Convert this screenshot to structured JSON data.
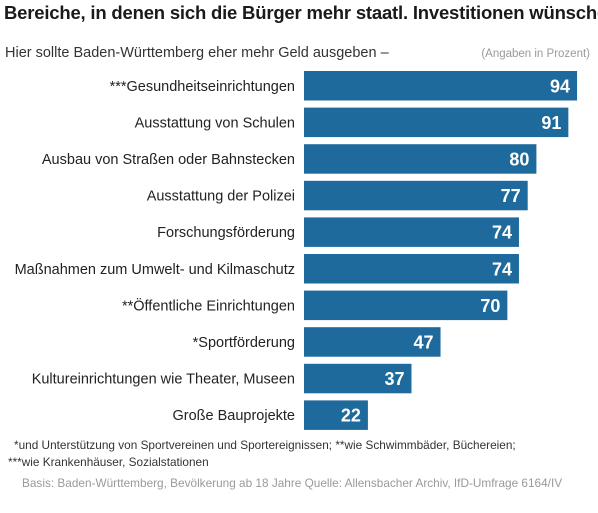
{
  "title": "Bereiche, in denen sich die Bürger mehr staatl. Investitionen wünschen",
  "subtitle": "Hier sollte Baden-Württemberg eher mehr Geld ausgeben –",
  "unit_note": "(Angaben in Prozent)",
  "footnotes": {
    "line1": "*und Unterstützung von Sportvereinen und Sportereignissen; **wie Schwimmbäder, Büchereien;",
    "line2": "***wie Krankenhäuser, Sozialstationen"
  },
  "source": "Basis: Baden-Württemberg, Bevölkerung ab 18 Jahre Quelle: Allensbacher Archiv, IfD-Umfrage 6164/IV",
  "colors": {
    "bar": "#1e6a9c",
    "bar_value_text": "#ffffff"
  },
  "chart_data": {
    "type": "bar",
    "orientation": "horizontal",
    "categories": [
      "***Gesundheitseinrichtungen",
      "Ausstattung von Schulen",
      "Ausbau von Straßen oder Bahnstecken",
      "Ausstattung der Polizei",
      "Forschungsförderung",
      "Maßnahmen zum Umwelt- und Kilmaschutz",
      "**Öffentliche Einrichtungen",
      "*Sportförderung",
      "Kultureinrichtungen wie Theater, Museen",
      "Große Bauprojekte"
    ],
    "values": [
      94,
      91,
      80,
      77,
      74,
      74,
      70,
      47,
      37,
      22
    ],
    "xlim": [
      0,
      100
    ],
    "grid": false,
    "legend": "none",
    "data_labels": true
  }
}
